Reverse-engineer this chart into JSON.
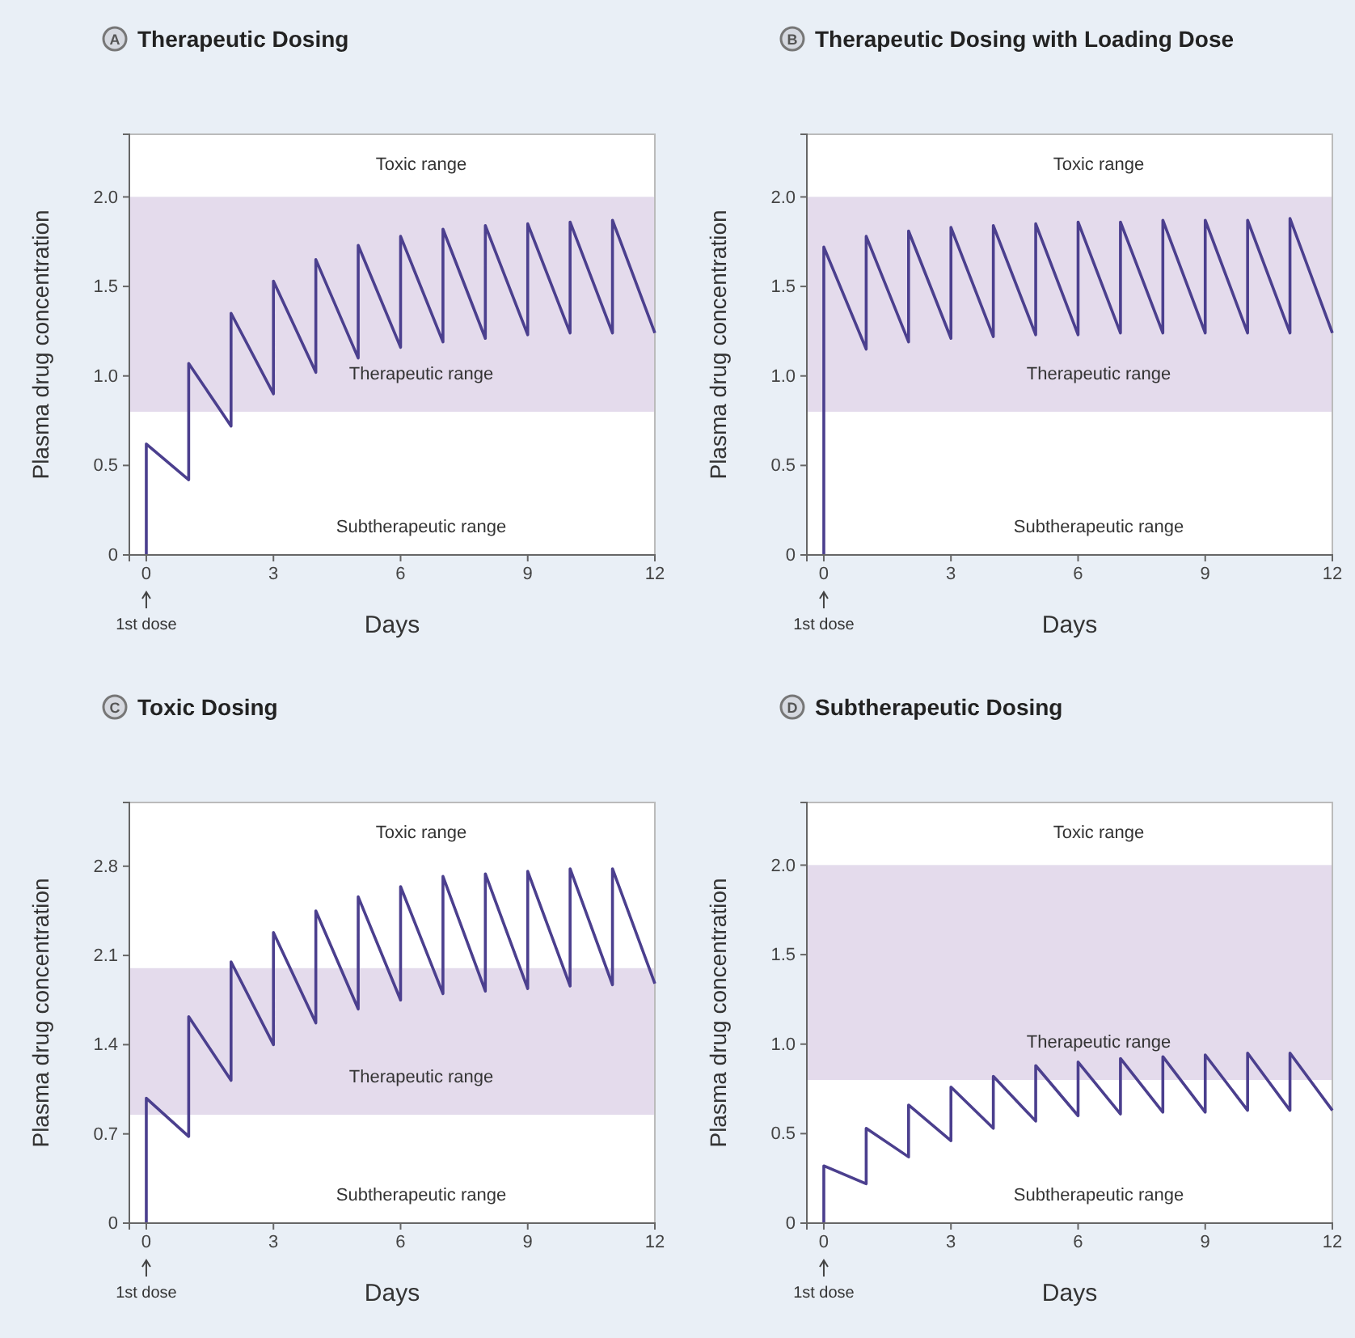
{
  "chart_data": [
    {
      "type": "line",
      "title": "Therapeutic Dosing",
      "xlabel": "Days",
      "ylabel": "Plasma drug concentration",
      "annotations": [
        "A",
        "1st dose"
      ],
      "xlim": [
        -0.4,
        12
      ],
      "xticks": [
        0,
        3,
        6,
        9,
        12
      ],
      "ylim": [
        0,
        2.35
      ],
      "yticks": [
        {
          "value": 0,
          "label": "0"
        },
        {
          "value": 0.5,
          "label": "0.5"
        },
        {
          "value": 1,
          "label": "1.0"
        },
        {
          "value": 1.5,
          "label": "1.5"
        },
        {
          "value": 2,
          "label": "2.0"
        }
      ],
      "bands": [
        {
          "axis": "y",
          "from": 2,
          "to": 2.35,
          "label": "Toxic range",
          "color": "#ffffff"
        },
        {
          "axis": "y",
          "from": 0.8,
          "to": 2,
          "label": "Therapeutic range",
          "color": "#e4dbec"
        },
        {
          "axis": "y",
          "from": 0,
          "to": 0.8,
          "label": "Subtherapeutic range",
          "color": "#ffffff"
        }
      ],
      "series": [
        {
          "color": "#4b3f8e",
          "x": [
            0,
            0,
            1,
            1,
            2,
            2,
            3,
            3,
            4,
            4,
            5,
            5,
            6,
            6,
            7,
            7,
            8,
            8,
            9,
            9,
            10,
            10,
            11,
            11,
            12
          ],
          "values": [
            0,
            0.62,
            0.42,
            1.07,
            0.72,
            1.35,
            0.9,
            1.53,
            1.02,
            1.65,
            1.1,
            1.73,
            1.16,
            1.78,
            1.19,
            1.82,
            1.21,
            1.84,
            1.23,
            1.85,
            1.24,
            1.86,
            1.24,
            1.87,
            1.24
          ]
        }
      ]
    },
    {
      "type": "line",
      "title": "Therapeutic Dosing with Loading Dose",
      "xlabel": "Days",
      "ylabel": "Plasma drug concentration",
      "annotations": [
        "B",
        "1st dose"
      ],
      "xlim": [
        -0.4,
        12
      ],
      "xticks": [
        0,
        3,
        6,
        9,
        12
      ],
      "ylim": [
        0,
        2.35
      ],
      "yticks": [
        {
          "value": 0,
          "label": "0"
        },
        {
          "value": 0.5,
          "label": "0.5"
        },
        {
          "value": 1,
          "label": "1.0"
        },
        {
          "value": 1.5,
          "label": "1.5"
        },
        {
          "value": 2,
          "label": "2.0"
        }
      ],
      "bands": [
        {
          "axis": "y",
          "from": 2,
          "to": 2.35,
          "label": "Toxic range",
          "color": "#ffffff"
        },
        {
          "axis": "y",
          "from": 0.8,
          "to": 2,
          "label": "Therapeutic range",
          "color": "#e4dbec"
        },
        {
          "axis": "y",
          "from": 0,
          "to": 0.8,
          "label": "Subtherapeutic range",
          "color": "#ffffff"
        }
      ],
      "series": [
        {
          "color": "#4b3f8e",
          "x": [
            0,
            0,
            1,
            1,
            2,
            2,
            3,
            3,
            4,
            4,
            5,
            5,
            6,
            6,
            7,
            7,
            8,
            8,
            9,
            9,
            10,
            10,
            11,
            11,
            12
          ],
          "values": [
            0,
            1.72,
            1.15,
            1.78,
            1.19,
            1.81,
            1.21,
            1.83,
            1.22,
            1.84,
            1.23,
            1.85,
            1.23,
            1.86,
            1.24,
            1.86,
            1.24,
            1.87,
            1.24,
            1.87,
            1.24,
            1.87,
            1.24,
            1.88,
            1.24
          ]
        }
      ]
    },
    {
      "type": "line",
      "title": "Toxic Dosing",
      "xlabel": "Days",
      "ylabel": "Plasma drug concentration",
      "annotations": [
        "C",
        "1st dose"
      ],
      "xlim": [
        -0.4,
        12
      ],
      "xticks": [
        0,
        3,
        6,
        9,
        12
      ],
      "ylim": [
        0,
        3.3
      ],
      "yticks": [
        {
          "value": 0,
          "label": "0"
        },
        {
          "value": 0.7,
          "label": "0.7"
        },
        {
          "value": 1.4,
          "label": "1.4"
        },
        {
          "value": 2.1,
          "label": "2.1"
        },
        {
          "value": 2.8,
          "label": "2.8"
        }
      ],
      "bands": [
        {
          "axis": "y",
          "from": 2,
          "to": 3.3,
          "label": "Toxic range",
          "color": "#ffffff"
        },
        {
          "axis": "y",
          "from": 0.85,
          "to": 2,
          "label": "Therapeutic range",
          "color": "#e4dbec"
        },
        {
          "axis": "y",
          "from": 0,
          "to": 0.85,
          "label": "Subtherapeutic range",
          "color": "#ffffff"
        }
      ],
      "series": [
        {
          "color": "#4b3f8e",
          "x": [
            0,
            0,
            1,
            1,
            2,
            2,
            3,
            3,
            4,
            4,
            5,
            5,
            6,
            6,
            7,
            7,
            8,
            8,
            9,
            9,
            10,
            10,
            11,
            11,
            12
          ],
          "values": [
            0,
            0.98,
            0.68,
            1.62,
            1.12,
            2.05,
            1.4,
            2.28,
            1.57,
            2.45,
            1.68,
            2.56,
            1.75,
            2.64,
            1.8,
            2.72,
            1.82,
            2.74,
            1.84,
            2.76,
            1.86,
            2.78,
            1.87,
            2.78,
            1.88
          ]
        }
      ]
    },
    {
      "type": "line",
      "title": "Subtherapeutic Dosing",
      "xlabel": "Days",
      "ylabel": "Plasma drug concentration",
      "annotations": [
        "D",
        "1st dose"
      ],
      "xlim": [
        -0.4,
        12
      ],
      "xticks": [
        0,
        3,
        6,
        9,
        12
      ],
      "ylim": [
        0,
        2.35
      ],
      "yticks": [
        {
          "value": 0,
          "label": "0"
        },
        {
          "value": 0.5,
          "label": "0.5"
        },
        {
          "value": 1,
          "label": "1.0"
        },
        {
          "value": 1.5,
          "label": "1.5"
        },
        {
          "value": 2,
          "label": "2.0"
        }
      ],
      "bands": [
        {
          "axis": "y",
          "from": 2,
          "to": 2.35,
          "label": "Toxic range",
          "color": "#ffffff"
        },
        {
          "axis": "y",
          "from": 0.8,
          "to": 2,
          "label": "Therapeutic range",
          "color": "#e4dbec"
        },
        {
          "axis": "y",
          "from": 0,
          "to": 0.8,
          "label": "Subtherapeutic range",
          "color": "#ffffff"
        }
      ],
      "series": [
        {
          "color": "#4b3f8e",
          "x": [
            0,
            0,
            1,
            1,
            2,
            2,
            3,
            3,
            4,
            4,
            5,
            5,
            6,
            6,
            7,
            7,
            8,
            8,
            9,
            9,
            10,
            10,
            11,
            11,
            12
          ],
          "values": [
            0,
            0.32,
            0.22,
            0.53,
            0.37,
            0.66,
            0.46,
            0.76,
            0.53,
            0.82,
            0.57,
            0.88,
            0.6,
            0.9,
            0.61,
            0.92,
            0.62,
            0.93,
            0.62,
            0.94,
            0.63,
            0.95,
            0.63,
            0.95,
            0.63
          ]
        }
      ]
    }
  ]
}
